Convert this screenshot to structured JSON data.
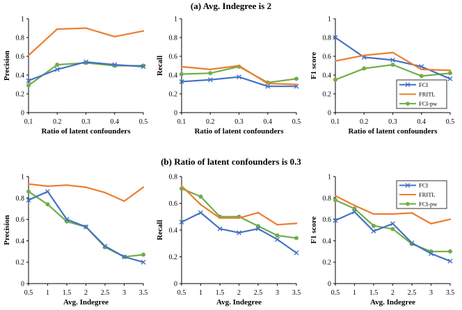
{
  "figure": {
    "section_a_title": "(a) Avg. Indegree is 2",
    "section_b_title": "(b) Ratio of latent confounders is 0.3"
  },
  "colors": {
    "FCI": "#4472c4",
    "FRITL": "#ed7d31",
    "FCI-pw": "#70ad47"
  },
  "chart_data": [
    {
      "type": "line",
      "id": "a-precision",
      "title": "",
      "xlabel": "Ratio of latent confounders",
      "ylabel": "Precision",
      "x": [
        0.1,
        0.2,
        0.3,
        0.4,
        0.5
      ],
      "x_ticks": [
        "0.1",
        "0.2",
        "0.3",
        "0.4",
        "0.5"
      ],
      "ylim": [
        0,
        1
      ],
      "y_ticks": [
        "0",
        "0.2",
        "0.4",
        "0.6",
        "0.8",
        "1"
      ],
      "series": [
        {
          "name": "FCI",
          "values": [
            0.34,
            0.46,
            0.54,
            0.51,
            0.49
          ]
        },
        {
          "name": "FRITL",
          "values": [
            0.61,
            0.89,
            0.9,
            0.81,
            0.87
          ]
        },
        {
          "name": "FCI-pw",
          "values": [
            0.29,
            0.51,
            0.53,
            0.5,
            0.5
          ]
        }
      ]
    },
    {
      "type": "line",
      "id": "a-recall",
      "title": "",
      "xlabel": "Ratio of latent confounders",
      "ylabel": "Recall",
      "x": [
        0.1,
        0.2,
        0.3,
        0.4,
        0.5
      ],
      "x_ticks": [
        "0.1",
        "0.2",
        "0.3",
        "0.4",
        "0.5"
      ],
      "ylim": [
        0,
        1
      ],
      "y_ticks": [
        "0",
        "0.2",
        "0.4",
        "0.6",
        "0.8",
        "1"
      ],
      "series": [
        {
          "name": "FCI",
          "values": [
            0.33,
            0.35,
            0.38,
            0.28,
            0.28
          ]
        },
        {
          "name": "FRITL",
          "values": [
            0.49,
            0.46,
            0.5,
            0.31,
            0.3
          ]
        },
        {
          "name": "FCI-pw",
          "values": [
            0.41,
            0.42,
            0.49,
            0.32,
            0.36
          ]
        }
      ]
    },
    {
      "type": "line",
      "id": "a-f1",
      "title": "",
      "xlabel": "Ratio of latent confounders",
      "ylabel": "F1 score",
      "x": [
        0.1,
        0.2,
        0.3,
        0.4,
        0.5
      ],
      "x_ticks": [
        "0.1",
        "0.2",
        "0.3",
        "0.4",
        "0.5"
      ],
      "ylim": [
        0,
        1
      ],
      "y_ticks": [
        "0",
        "0.2",
        "0.4",
        "0.6",
        "0.8",
        "1"
      ],
      "legend": "bottom-right",
      "legend_entries": [
        "FCI",
        "FRITL",
        "FCI-pw"
      ],
      "series": [
        {
          "name": "FCI",
          "values": [
            0.8,
            0.59,
            0.56,
            0.49,
            0.36
          ]
        },
        {
          "name": "FRITL",
          "values": [
            0.55,
            0.61,
            0.64,
            0.46,
            0.45
          ]
        },
        {
          "name": "FCI-pw",
          "values": [
            0.35,
            0.47,
            0.51,
            0.39,
            0.42
          ]
        }
      ]
    },
    {
      "type": "line",
      "id": "b-precision",
      "title": "",
      "xlabel": "Avg. Indegree",
      "ylabel": "Precision",
      "x": [
        0.5,
        1,
        1.5,
        2,
        2.5,
        3,
        3.5
      ],
      "x_ticks": [
        "0.5",
        "1",
        "1.5",
        "2",
        "2.5",
        "3",
        "3.5"
      ],
      "ylim": [
        0,
        1
      ],
      "y_ticks": [
        "0",
        "0.2",
        "0.4",
        "0.6",
        "0.8",
        "1"
      ],
      "series": [
        {
          "name": "FCI",
          "values": [
            0.78,
            0.86,
            0.6,
            0.53,
            0.35,
            0.25,
            0.2
          ]
        },
        {
          "name": "FRITL",
          "values": [
            0.93,
            0.91,
            0.92,
            0.9,
            0.85,
            0.77,
            0.9
          ]
        },
        {
          "name": "FCI-pw",
          "values": [
            0.86,
            0.74,
            0.58,
            0.53,
            0.34,
            0.25,
            0.27
          ]
        }
      ]
    },
    {
      "type": "line",
      "id": "b-recall",
      "title": "",
      "xlabel": "Avg. Indegree",
      "ylabel": "Recall",
      "x": [
        0.5,
        1,
        1.5,
        2,
        2.5,
        3,
        3.5
      ],
      "x_ticks": [
        "0.5",
        "1",
        "1.5",
        "2",
        "2.5",
        "3",
        "3.5"
      ],
      "ylim": [
        0,
        0.8
      ],
      "y_ticks": [
        "0",
        "0.2",
        "0.4",
        "0.6",
        "0.8"
      ],
      "series": [
        {
          "name": "FCI",
          "values": [
            0.46,
            0.53,
            0.41,
            0.38,
            0.41,
            0.33,
            0.23
          ]
        },
        {
          "name": "FRITL",
          "values": [
            0.73,
            0.59,
            0.49,
            0.49,
            0.53,
            0.44,
            0.45
          ]
        },
        {
          "name": "FCI-pw",
          "values": [
            0.71,
            0.65,
            0.5,
            0.5,
            0.43,
            0.36,
            0.34
          ]
        }
      ]
    },
    {
      "type": "line",
      "id": "b-f1",
      "title": "",
      "xlabel": "Avg. Indegree",
      "ylabel": "F1 score",
      "x": [
        0.5,
        1,
        1.5,
        2,
        2.5,
        3,
        3.5
      ],
      "x_ticks": [
        "0.5",
        "1",
        "1.5",
        "2",
        "2.5",
        "3",
        "3.5"
      ],
      "ylim": [
        0,
        1
      ],
      "y_ticks": [
        "0",
        "0.2",
        "0.4",
        "0.6",
        "0.8",
        "1"
      ],
      "legend": "top-right",
      "legend_entries": [
        "FCI",
        "FRITL",
        "FCI-pw"
      ],
      "series": [
        {
          "name": "FCI",
          "values": [
            0.59,
            0.67,
            0.49,
            0.56,
            0.38,
            0.28,
            0.21
          ]
        },
        {
          "name": "FRITL",
          "values": [
            0.82,
            0.73,
            0.65,
            0.65,
            0.66,
            0.56,
            0.6
          ]
        },
        {
          "name": "FCI-pw",
          "values": [
            0.78,
            0.7,
            0.54,
            0.51,
            0.37,
            0.3,
            0.3
          ]
        }
      ]
    }
  ]
}
